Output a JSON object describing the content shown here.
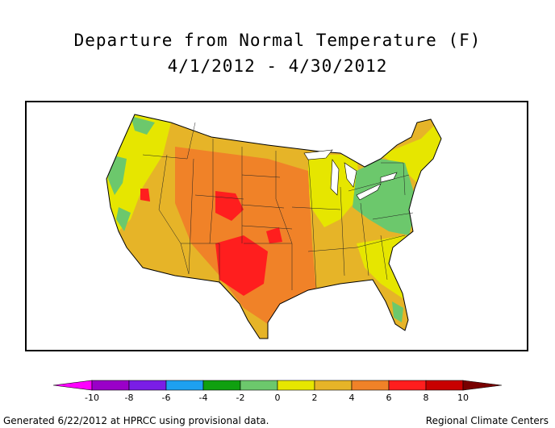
{
  "title": "Departure from Normal Temperature (F)",
  "subtitle": "4/1/2012 - 4/30/2012",
  "legend": {
    "ticks": [
      "-10",
      "-8",
      "-6",
      "-4",
      "-2",
      "0",
      "2",
      "4",
      "6",
      "8",
      "10"
    ],
    "bins": [
      {
        "from": -12,
        "to": -10,
        "color": "#ff00ff"
      },
      {
        "from": -10,
        "to": -8,
        "color": "#9a00c8"
      },
      {
        "from": -8,
        "to": -6,
        "color": "#7a1ee6"
      },
      {
        "from": -6,
        "to": -4,
        "color": "#1ea0f0"
      },
      {
        "from": -4,
        "to": -2,
        "color": "#10a010"
      },
      {
        "from": -2,
        "to": 0,
        "color": "#6cc86c"
      },
      {
        "from": 0,
        "to": 2,
        "color": "#e6e600"
      },
      {
        "from": 2,
        "to": 4,
        "color": "#e6b428"
      },
      {
        "from": 4,
        "to": 6,
        "color": "#f08228"
      },
      {
        "from": 6,
        "to": 8,
        "color": "#ff1e1e"
      },
      {
        "from": 8,
        "to": 10,
        "color": "#c80000"
      },
      {
        "from": 10,
        "to": 12,
        "color": "#780000"
      }
    ]
  },
  "footer": {
    "left": "Generated 6/22/2012 at HPRCC using provisional data.",
    "right": "Regional Climate Centers"
  }
}
